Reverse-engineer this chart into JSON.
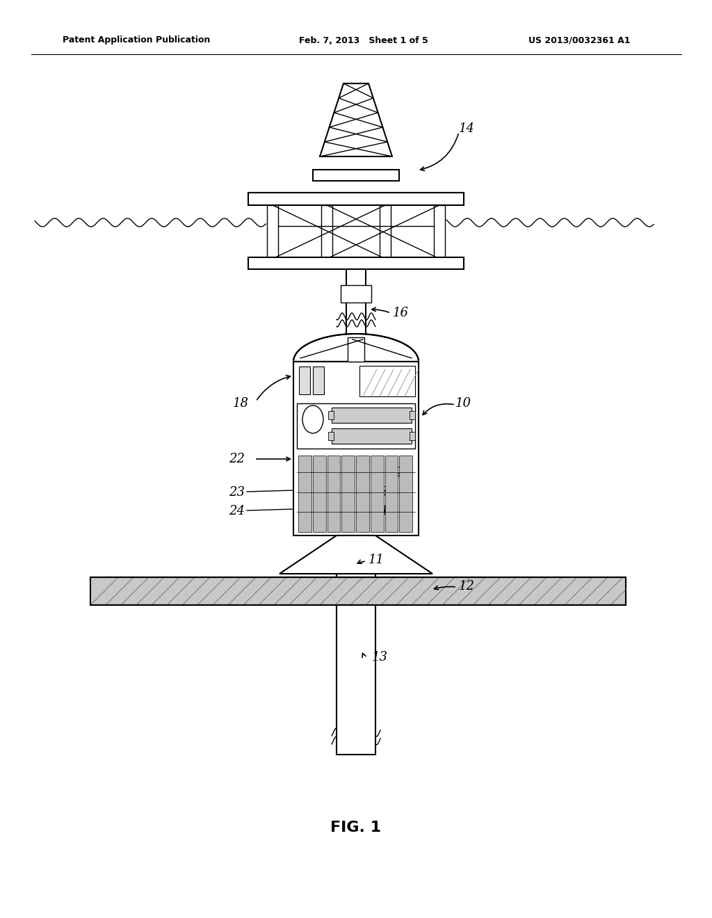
{
  "bg_color": "#ffffff",
  "lc": "#000000",
  "header_left": "Patent Application Publication",
  "header_mid": "Feb. 7, 2013   Sheet 1 of 5",
  "header_right": "US 2013/0032361 A1",
  "fig_label": "FIG. 1",
  "figsize": [
    10.24,
    13.2
  ],
  "dpi": 100,
  "xlim": [
    0,
    1024
  ],
  "ylim": [
    0,
    1320
  ]
}
